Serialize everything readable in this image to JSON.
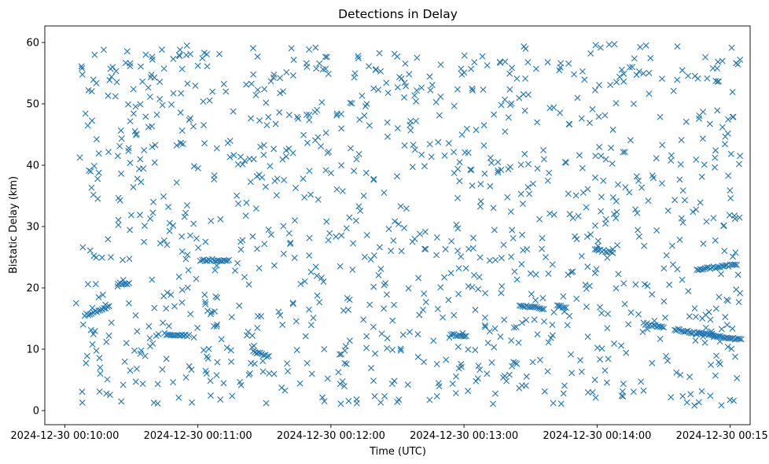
{
  "chart_data": {
    "type": "scatter",
    "title": "Detections in Delay",
    "xlabel": "Time (UTC)",
    "ylabel": "Bistatic Delay (km)",
    "marker": "x",
    "color": "#1f77b4",
    "grid": false,
    "x_range": [
      "2024-12-30 00:09:51",
      "2024-12-30 00:15:09"
    ],
    "x_ticks": [
      {
        "time": "2024-12-30 00:10:00",
        "label": "2024-12-30 00:10:00"
      },
      {
        "time": "2024-12-30 00:11:00",
        "label": "2024-12-30 00:11:00"
      },
      {
        "time": "2024-12-30 00:12:00",
        "label": "2024-12-30 00:12:00"
      },
      {
        "time": "2024-12-30 00:13:00",
        "label": "2024-12-30 00:13:00"
      },
      {
        "time": "2024-12-30 00:14:00",
        "label": "2024-12-30 00:14:00"
      },
      {
        "time": "2024-12-30 00:15:00",
        "label": "2024-12-30 00:15:00"
      }
    ],
    "ylim": [
      -2.3,
      62.7
    ],
    "y_ticks": [
      0,
      10,
      20,
      30,
      40,
      50,
      60
    ],
    "approx_points": 1400,
    "tracks": [
      {
        "t_start": "2024-12-30 00:10:09",
        "t_end": "2024-12-30 00:10:20",
        "y_start": 15.5,
        "y_end": 16.9
      },
      {
        "t_start": "2024-12-30 00:10:24",
        "t_end": "2024-12-30 00:10:29",
        "y_start": 20.7,
        "y_end": 20.7
      },
      {
        "t_start": "2024-12-30 00:10:45",
        "t_end": "2024-12-30 00:10:56",
        "y_start": 12.5,
        "y_end": 12.2
      },
      {
        "t_start": "2024-12-30 00:11:02",
        "t_end": "2024-12-30 00:11:14",
        "y_start": 24.6,
        "y_end": 24.4
      },
      {
        "t_start": "2024-12-30 00:12:54",
        "t_end": "2024-12-30 00:13:01",
        "y_start": 12.4,
        "y_end": 12.1
      },
      {
        "t_start": "2024-12-30 00:13:25",
        "t_end": "2024-12-30 00:13:36",
        "y_start": 17.1,
        "y_end": 16.6
      },
      {
        "t_start": "2024-12-30 00:13:42",
        "t_end": "2024-12-30 00:13:46",
        "y_start": 17.0,
        "y_end": 16.8
      },
      {
        "t_start": "2024-12-30 00:13:59",
        "t_end": "2024-12-30 00:14:07",
        "y_start": 26.2,
        "y_end": 25.8
      },
      {
        "t_start": "2024-12-30 00:14:21",
        "t_end": "2024-12-30 00:14:30",
        "y_start": 14.2,
        "y_end": 13.5
      },
      {
        "t_start": "2024-12-30 00:14:35",
        "t_end": "2024-12-30 00:15:05",
        "y_start": 13.2,
        "y_end": 11.5
      },
      {
        "t_start": "2024-12-30 00:14:45",
        "t_end": "2024-12-30 00:15:03",
        "y_start": 23.0,
        "y_end": 23.8
      },
      {
        "t_start": "2024-12-30 00:11:25",
        "t_end": "2024-12-30 00:11:32",
        "y_start": 9.6,
        "y_end": 8.8
      }
    ]
  }
}
